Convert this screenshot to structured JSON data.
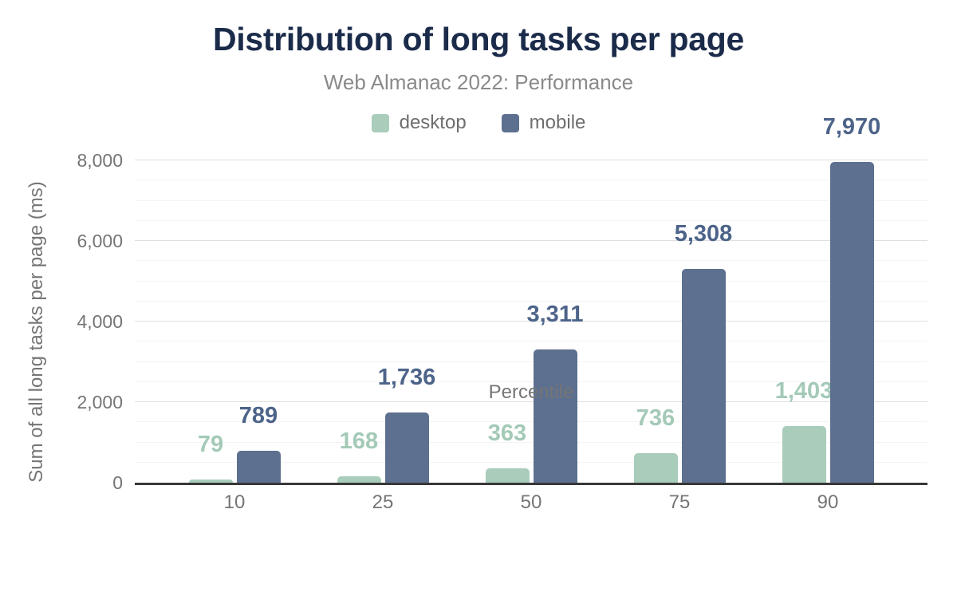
{
  "chart_data": {
    "type": "bar",
    "title": "Distribution of long tasks per page",
    "subtitle": "Web Almanac 2022: Performance",
    "xlabel": "Percentile",
    "ylabel": "Sum of all long tasks per page (ms)",
    "categories": [
      "10",
      "25",
      "50",
      "75",
      "90"
    ],
    "series": [
      {
        "name": "desktop",
        "color": "#a9ccbb",
        "label_color": "#a4cab7",
        "values": [
          79,
          168,
          363,
          736,
          1403
        ],
        "labels": [
          "79",
          "168",
          "363",
          "736",
          "1,403"
        ]
      },
      {
        "name": "mobile",
        "color": "#5d708f",
        "label_color": "#4d6489",
        "values": [
          789,
          1736,
          3311,
          5308,
          7970
        ],
        "labels": [
          "789",
          "1,736",
          "3,311",
          "5,308",
          "7,970"
        ]
      }
    ],
    "ylim": [
      0,
      8000
    ],
    "yticks": [
      0,
      2000,
      4000,
      6000,
      8000
    ],
    "ytick_labels": [
      "0",
      "2,000",
      "4,000",
      "6,000",
      "8,000"
    ],
    "minor_tick_interval": 500,
    "grid": "horizontal-major-and-minor",
    "legend_position": "top",
    "colors": {
      "title": "#1b2b4a",
      "subtitle": "#8a8a8a",
      "axis_line": "#383838",
      "tick_labels": "#757575",
      "legend_text": "#6e6e6e",
      "major_gridline": "#dfdfdf",
      "minor_gridline": "#f4f4f4",
      "background": "#ffffff"
    }
  }
}
